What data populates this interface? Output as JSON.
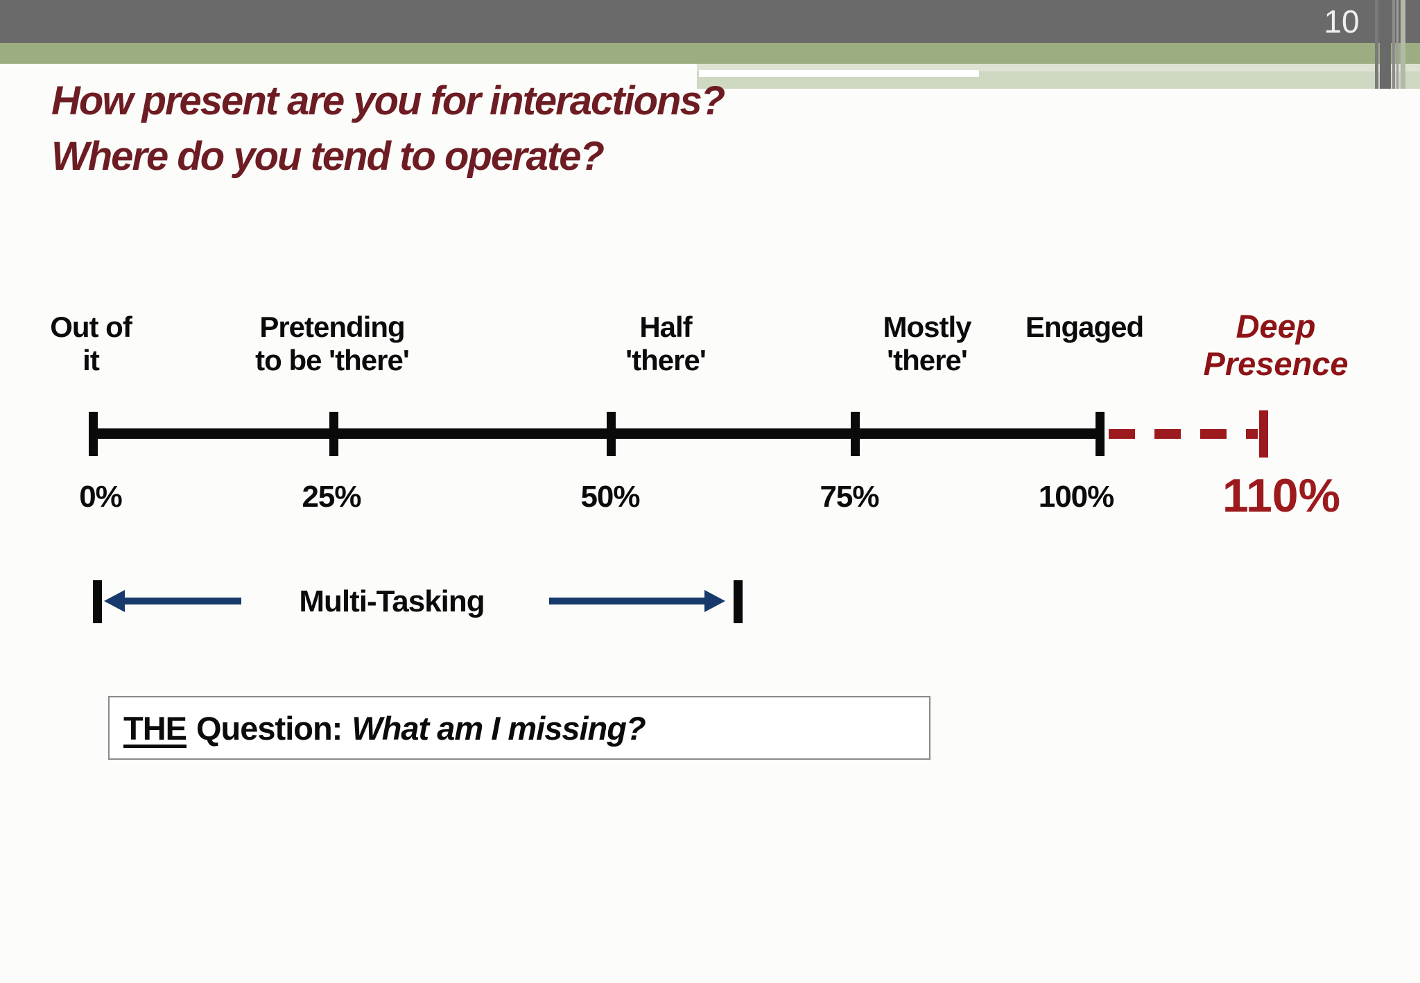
{
  "page": {
    "number": "10"
  },
  "title": {
    "line1": "How present are you for interactions?",
    "line2": "Where do you tend to operate?"
  },
  "scale": {
    "points": [
      {
        "label": "Out of\nit",
        "pct": "0%"
      },
      {
        "label": "Pretending\nto be 'there'",
        "pct": "25%"
      },
      {
        "label": "Half\n'there'",
        "pct": "50%"
      },
      {
        "label": "Mostly\n'there'",
        "pct": "75%"
      },
      {
        "label": "Engaged",
        "pct": "100%"
      },
      {
        "label": "Deep\nPresence",
        "pct": "110%"
      }
    ],
    "colors": {
      "line": "#0a0a0a",
      "extension_red": "#9c1a1d",
      "deep_presence_red": "#8e1316",
      "title_maroon": "#6e1c23"
    }
  },
  "multitasking": {
    "label": "Multi-Tasking",
    "arrow_color": "#17396b"
  },
  "question": {
    "the": "THE",
    "mid": "Question:",
    "italic": "What am I missing?"
  }
}
